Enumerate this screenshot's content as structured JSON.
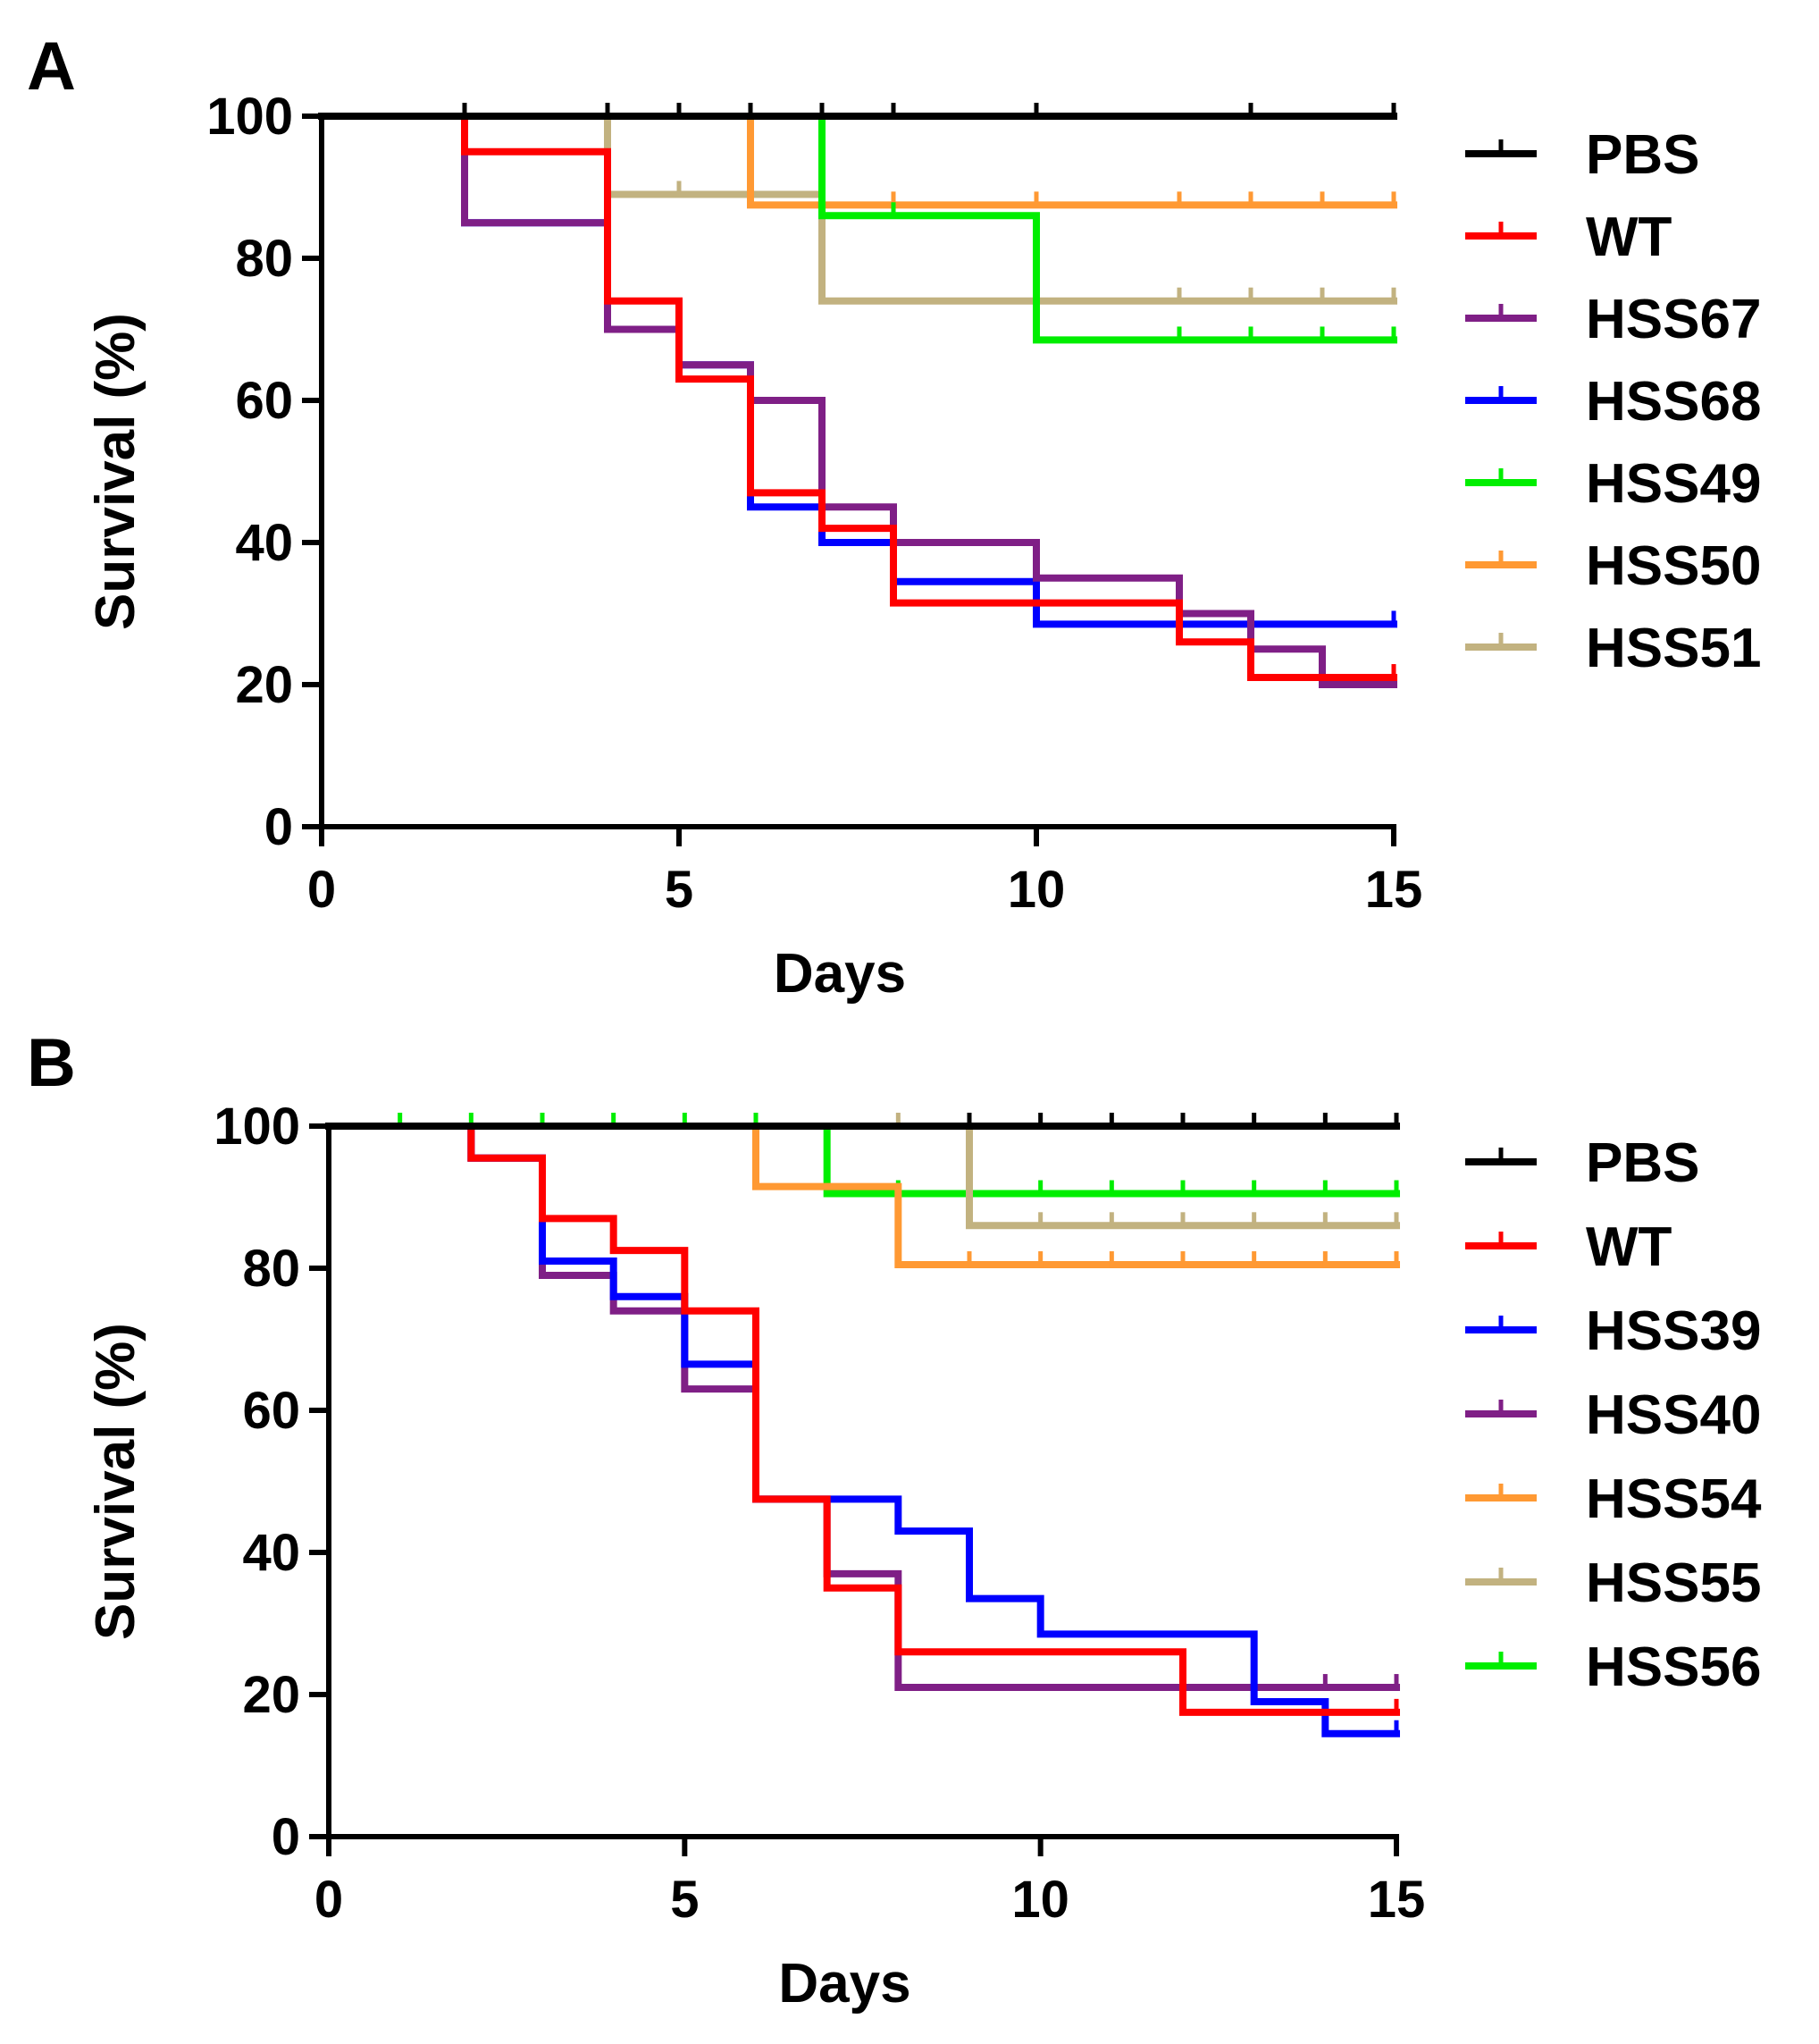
{
  "chart_data": [
    {
      "panel_label": "A",
      "type": "line",
      "subtype": "kaplan-meier-step",
      "xlabel": "Days",
      "ylabel": "Survival (%)",
      "xlim": [
        0,
        15
      ],
      "ylim": [
        0,
        100
      ],
      "xticks": [
        0,
        5,
        10,
        15
      ],
      "yticks": [
        0,
        20,
        40,
        60,
        80,
        100
      ],
      "legend_position": "right",
      "series": [
        {
          "name": "PBS",
          "color": "#000000",
          "steps": [
            [
              0,
              100
            ],
            [
              15,
              100
            ]
          ],
          "censor": [
            2,
            4,
            5,
            6,
            7,
            8,
            10,
            13,
            15
          ]
        },
        {
          "name": "WT",
          "color": "#ff0000",
          "steps": [
            [
              0,
              100
            ],
            [
              2,
              95
            ],
            [
              4,
              74
            ],
            [
              5,
              63
            ],
            [
              6,
              47
            ],
            [
              7,
              42
            ],
            [
              8,
              31.5
            ],
            [
              12,
              26
            ],
            [
              13,
              21
            ],
            [
              15,
              21
            ]
          ],
          "censor": [
            15
          ]
        },
        {
          "name": "HSS67",
          "color": "#7f1f86",
          "steps": [
            [
              0,
              100
            ],
            [
              2,
              85
            ],
            [
              4,
              70
            ],
            [
              5,
              65
            ],
            [
              6,
              60
            ],
            [
              7,
              45
            ],
            [
              8,
              40
            ],
            [
              10,
              35
            ],
            [
              12,
              30
            ],
            [
              13,
              25
            ],
            [
              14,
              20
            ],
            [
              15,
              20
            ]
          ],
          "censor": [
            15
          ]
        },
        {
          "name": "HSS68",
          "color": "#0000ff",
          "steps": [
            [
              0,
              100
            ],
            [
              2,
              85
            ],
            [
              4,
              70
            ],
            [
              5,
              65
            ],
            [
              6,
              45
            ],
            [
              7,
              40
            ],
            [
              8,
              34.5
            ],
            [
              10,
              28.5
            ],
            [
              15,
              28.5
            ]
          ],
          "censor": [
            15
          ]
        },
        {
          "name": "HSS49",
          "color": "#00ee00",
          "steps": [
            [
              0,
              100
            ],
            [
              7,
              86
            ],
            [
              10,
              68.5
            ],
            [
              15,
              68.5
            ]
          ],
          "censor": [
            6,
            8,
            12,
            13,
            14,
            15
          ]
        },
        {
          "name": "HSS50",
          "color": "#ff9933",
          "steps": [
            [
              0,
              100
            ],
            [
              6,
              87.5
            ],
            [
              15,
              87.5
            ]
          ],
          "censor": [
            4,
            5,
            8,
            10,
            12,
            13,
            14,
            15
          ]
        },
        {
          "name": "HSS51",
          "color": "#c2b280",
          "steps": [
            [
              0,
              100
            ],
            [
              4,
              89
            ],
            [
              7,
              74
            ],
            [
              15,
              74
            ]
          ],
          "censor": [
            5,
            6,
            12,
            13,
            14,
            15
          ]
        }
      ]
    },
    {
      "panel_label": "B",
      "type": "line",
      "subtype": "kaplan-meier-step",
      "xlabel": "Days",
      "ylabel": "Survival (%)",
      "xlim": [
        0,
        15
      ],
      "ylim": [
        0,
        100
      ],
      "xticks": [
        0,
        5,
        10,
        15
      ],
      "yticks": [
        0,
        20,
        40,
        60,
        80,
        100
      ],
      "legend_position": "right",
      "series": [
        {
          "name": "PBS",
          "color": "#000000",
          "steps": [
            [
              0,
              100
            ],
            [
              15,
              100
            ]
          ],
          "censor": [
            9,
            10,
            11,
            12,
            13,
            14,
            15
          ]
        },
        {
          "name": "WT",
          "color": "#ff0000",
          "steps": [
            [
              0,
              100
            ],
            [
              2,
              95.5
            ],
            [
              3,
              87
            ],
            [
              4,
              82.5
            ],
            [
              5,
              74
            ],
            [
              6,
              47.5
            ],
            [
              7,
              35
            ],
            [
              8,
              26
            ],
            [
              12,
              17.5
            ],
            [
              15,
              17.5
            ]
          ],
          "censor": [
            15
          ]
        },
        {
          "name": "HSS39",
          "color": "#0000ff",
          "steps": [
            [
              0,
              100
            ],
            [
              2,
              95.5
            ],
            [
              3,
              81
            ],
            [
              4,
              76
            ],
            [
              5,
              66.5
            ],
            [
              6,
              47.5
            ],
            [
              8,
              43
            ],
            [
              9,
              33.5
            ],
            [
              10,
              28.5
            ],
            [
              13,
              19
            ],
            [
              14,
              14.5
            ],
            [
              15,
              14.5
            ]
          ],
          "censor": [
            15
          ]
        },
        {
          "name": "HSS40",
          "color": "#7f1f86",
          "steps": [
            [
              0,
              100
            ],
            [
              2,
              95.5
            ],
            [
              3,
              79
            ],
            [
              4,
              74
            ],
            [
              5,
              63
            ],
            [
              6,
              47.5
            ],
            [
              7,
              37
            ],
            [
              8,
              21
            ],
            [
              15,
              21
            ]
          ],
          "censor": [
            14,
            15
          ]
        },
        {
          "name": "HSS54",
          "color": "#ff9933",
          "steps": [
            [
              0,
              100
            ],
            [
              6,
              91.5
            ],
            [
              8,
              80.5
            ],
            [
              15,
              80.5
            ]
          ],
          "censor": [
            9,
            10,
            11,
            12,
            13,
            14,
            15
          ]
        },
        {
          "name": "HSS55",
          "color": "#c2b280",
          "steps": [
            [
              0,
              100
            ],
            [
              9,
              86
            ],
            [
              15,
              86
            ]
          ],
          "censor": [
            8,
            10,
            11,
            12,
            13,
            14,
            15
          ]
        },
        {
          "name": "HSS56",
          "color": "#00ee00",
          "steps": [
            [
              0,
              100
            ],
            [
              7,
              90.5
            ],
            [
              15,
              90.5
            ]
          ],
          "censor": [
            1,
            2,
            3,
            4,
            5,
            6,
            8,
            9,
            10,
            11,
            12,
            13,
            14,
            15
          ]
        }
      ]
    }
  ]
}
